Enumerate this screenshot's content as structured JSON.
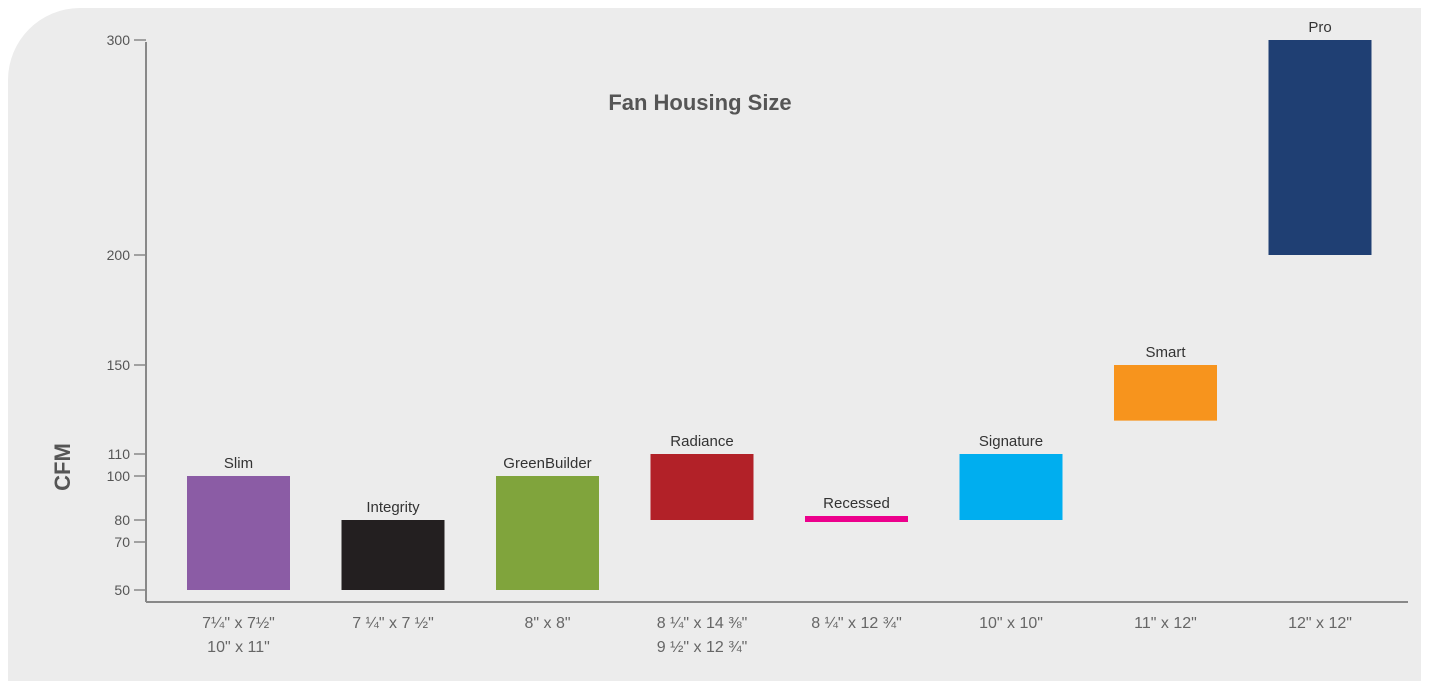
{
  "chart_data": {
    "type": "bar",
    "title": "Fan Housing Size",
    "ylabel": "CFM",
    "xlabel": "",
    "y_ticks": [
      50,
      70,
      80,
      100,
      110,
      150,
      200,
      300
    ],
    "y_scale": "piecewise",
    "grid": false,
    "legend": "none",
    "bars": [
      {
        "name": "Slim",
        "low": 50,
        "high": 100,
        "color": "#8b5ca5",
        "category": [
          "7¼\" x 7½\"",
          "10\" x 11\""
        ]
      },
      {
        "name": "Integrity",
        "low": 50,
        "high": 80,
        "color": "#231f20",
        "category": [
          "7 ¼\" x 7 ½\""
        ]
      },
      {
        "name": "GreenBuilder",
        "low": 50,
        "high": 100,
        "color": "#80a43c",
        "category": [
          "8\" x 8\""
        ]
      },
      {
        "name": "Radiance",
        "low": 80,
        "high": 110,
        "color": "#b22128",
        "category": [
          "8 ¼\" x 14 ⅜\"",
          "9 ½\" x 12 ¾\""
        ]
      },
      {
        "name": "Recessed",
        "low": 80,
        "high": 80,
        "color": "#ec008c",
        "category": [
          "8 ¼\" x 12 ¾\""
        ]
      },
      {
        "name": "Signature",
        "low": 80,
        "high": 110,
        "color": "#00aeef",
        "category": [
          "10\" x 10\""
        ]
      },
      {
        "name": "Smart",
        "low": 125,
        "high": 150,
        "color": "#f7941d",
        "category": [
          "11\" x 12\""
        ]
      },
      {
        "name": "Pro",
        "low": 200,
        "high": 300,
        "color": "#1f3f73",
        "category": [
          "12\" x 12\""
        ]
      }
    ]
  }
}
